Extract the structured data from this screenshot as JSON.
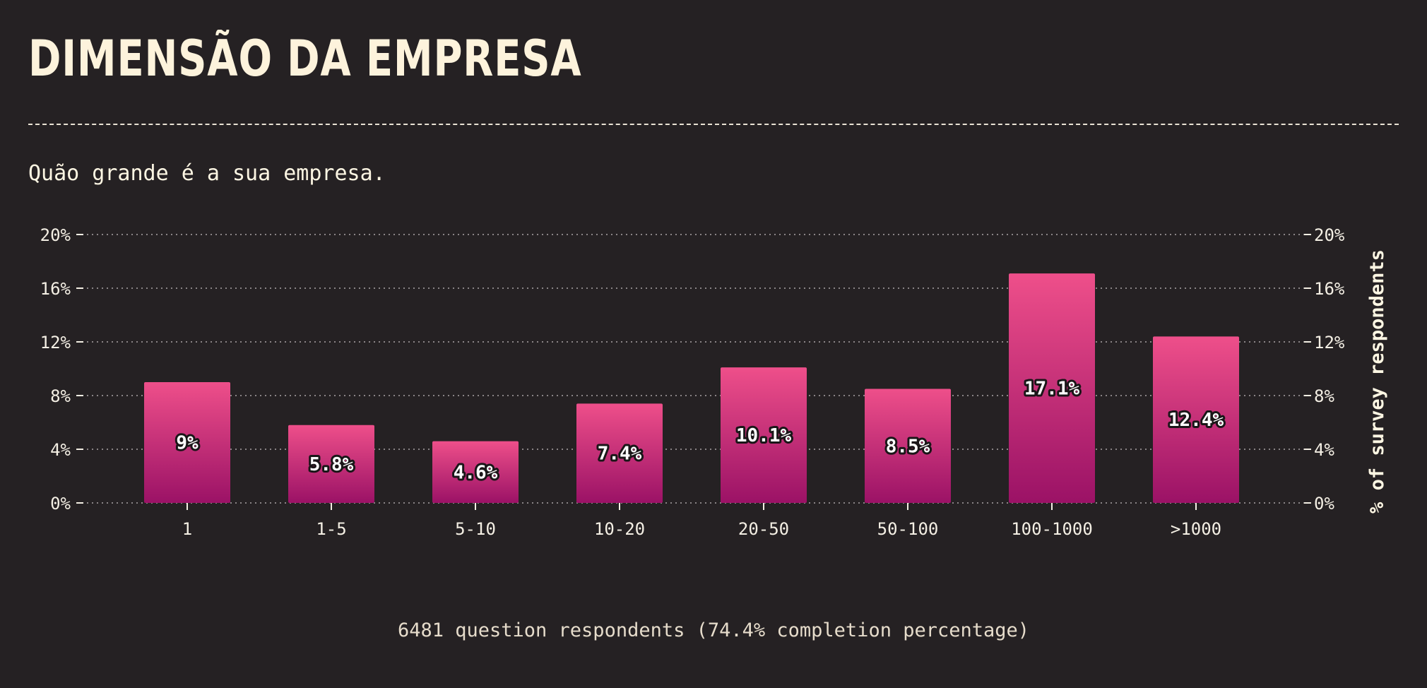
{
  "header": {
    "title": "DIMENSÃO DA EMPRESA",
    "subtitle": "Quão grande é a sua empresa."
  },
  "footer": {
    "text": "6481 question respondents (74.4% completion percentage)"
  },
  "colors": {
    "background": "#252123",
    "bar_top": "#ee4f8a",
    "bar_bottom": "#9b1266",
    "text": "#fdf6e3",
    "grid": "#8a8486"
  },
  "chart_data": {
    "type": "bar",
    "categories": [
      "1",
      "1-5",
      "5-10",
      "10-20",
      "20-50",
      "50-100",
      "100-1000",
      ">1000"
    ],
    "values": [
      9,
      5.8,
      4.6,
      7.4,
      10.1,
      8.5,
      17.1,
      12.4
    ],
    "value_labels": [
      "9%",
      "5.8%",
      "4.6%",
      "7.4%",
      "10.1%",
      "8.5%",
      "17.1%",
      "12.4%"
    ],
    "ylim": [
      0,
      20
    ],
    "yticks": [
      0,
      4,
      8,
      12,
      16,
      20
    ],
    "ytick_labels": [
      "0%",
      "4%",
      "8%",
      "12%",
      "16%",
      "20%"
    ],
    "ylabel": "% of survey respondents",
    "xlabel": "",
    "grid": true,
    "grid_style": "dotted",
    "y_axis_both_sides": true
  }
}
